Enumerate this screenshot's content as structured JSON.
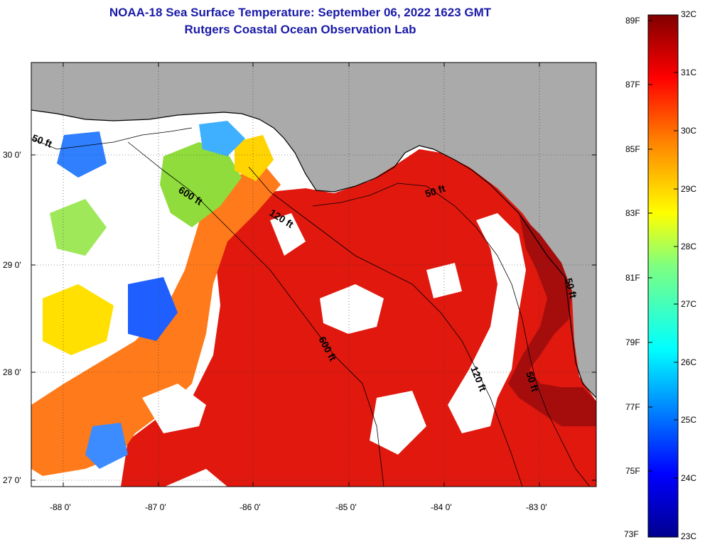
{
  "title_line1": "NOAA-18 Sea Surface Temperature:  September 06, 2022 1623 GMT",
  "title_line2": "Rutgers Coastal Ocean Observation Lab",
  "lat_labels": [
    "30 0'",
    "29 0'",
    "28 0'",
    "27 0'"
  ],
  "lon_labels": [
    "-88 0'",
    "-87 0'",
    "-86 0'",
    "-85 0'",
    "-84 0'",
    "-83 0'"
  ],
  "isobath_labels": [
    "50 ft",
    "600 ft",
    "120 ft",
    "50 ft",
    "600 ft",
    "120 ft",
    "50 ft",
    "50 ft"
  ],
  "colorbar": {
    "fahrenheit": [
      "89F",
      "87F",
      "85F",
      "83F",
      "81F",
      "79F",
      "77F",
      "75F",
      "73F"
    ],
    "celsius": [
      "32C",
      "31C",
      "30C",
      "29C",
      "28C",
      "27C",
      "26C",
      "25C",
      "24C",
      "23C"
    ]
  },
  "colors": {
    "title": "#1a1aa8",
    "land": "#aaaaaa",
    "cloud": "#ffffff"
  }
}
